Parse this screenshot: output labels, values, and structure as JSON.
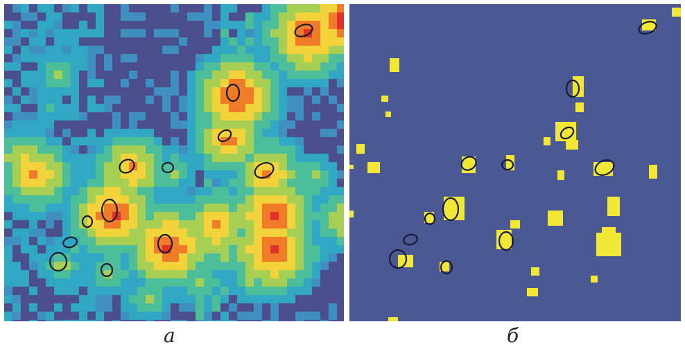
{
  "figure": {
    "panels": [
      {
        "id": "a",
        "caption": "а",
        "type": "heatmap",
        "background": "#4c4f8e"
      },
      {
        "id": "b",
        "caption": "б",
        "type": "binary-mask",
        "background": "#4a5993",
        "foreground": "#f2e733"
      }
    ],
    "colors": {
      "heatmap_scale": [
        "#3f8fc0",
        "#31a8c3",
        "#4cbf9a",
        "#a6cf53",
        "#f2d43a",
        "#f07c2a",
        "#e1322a"
      ],
      "contour": "#151a33"
    }
  }
}
